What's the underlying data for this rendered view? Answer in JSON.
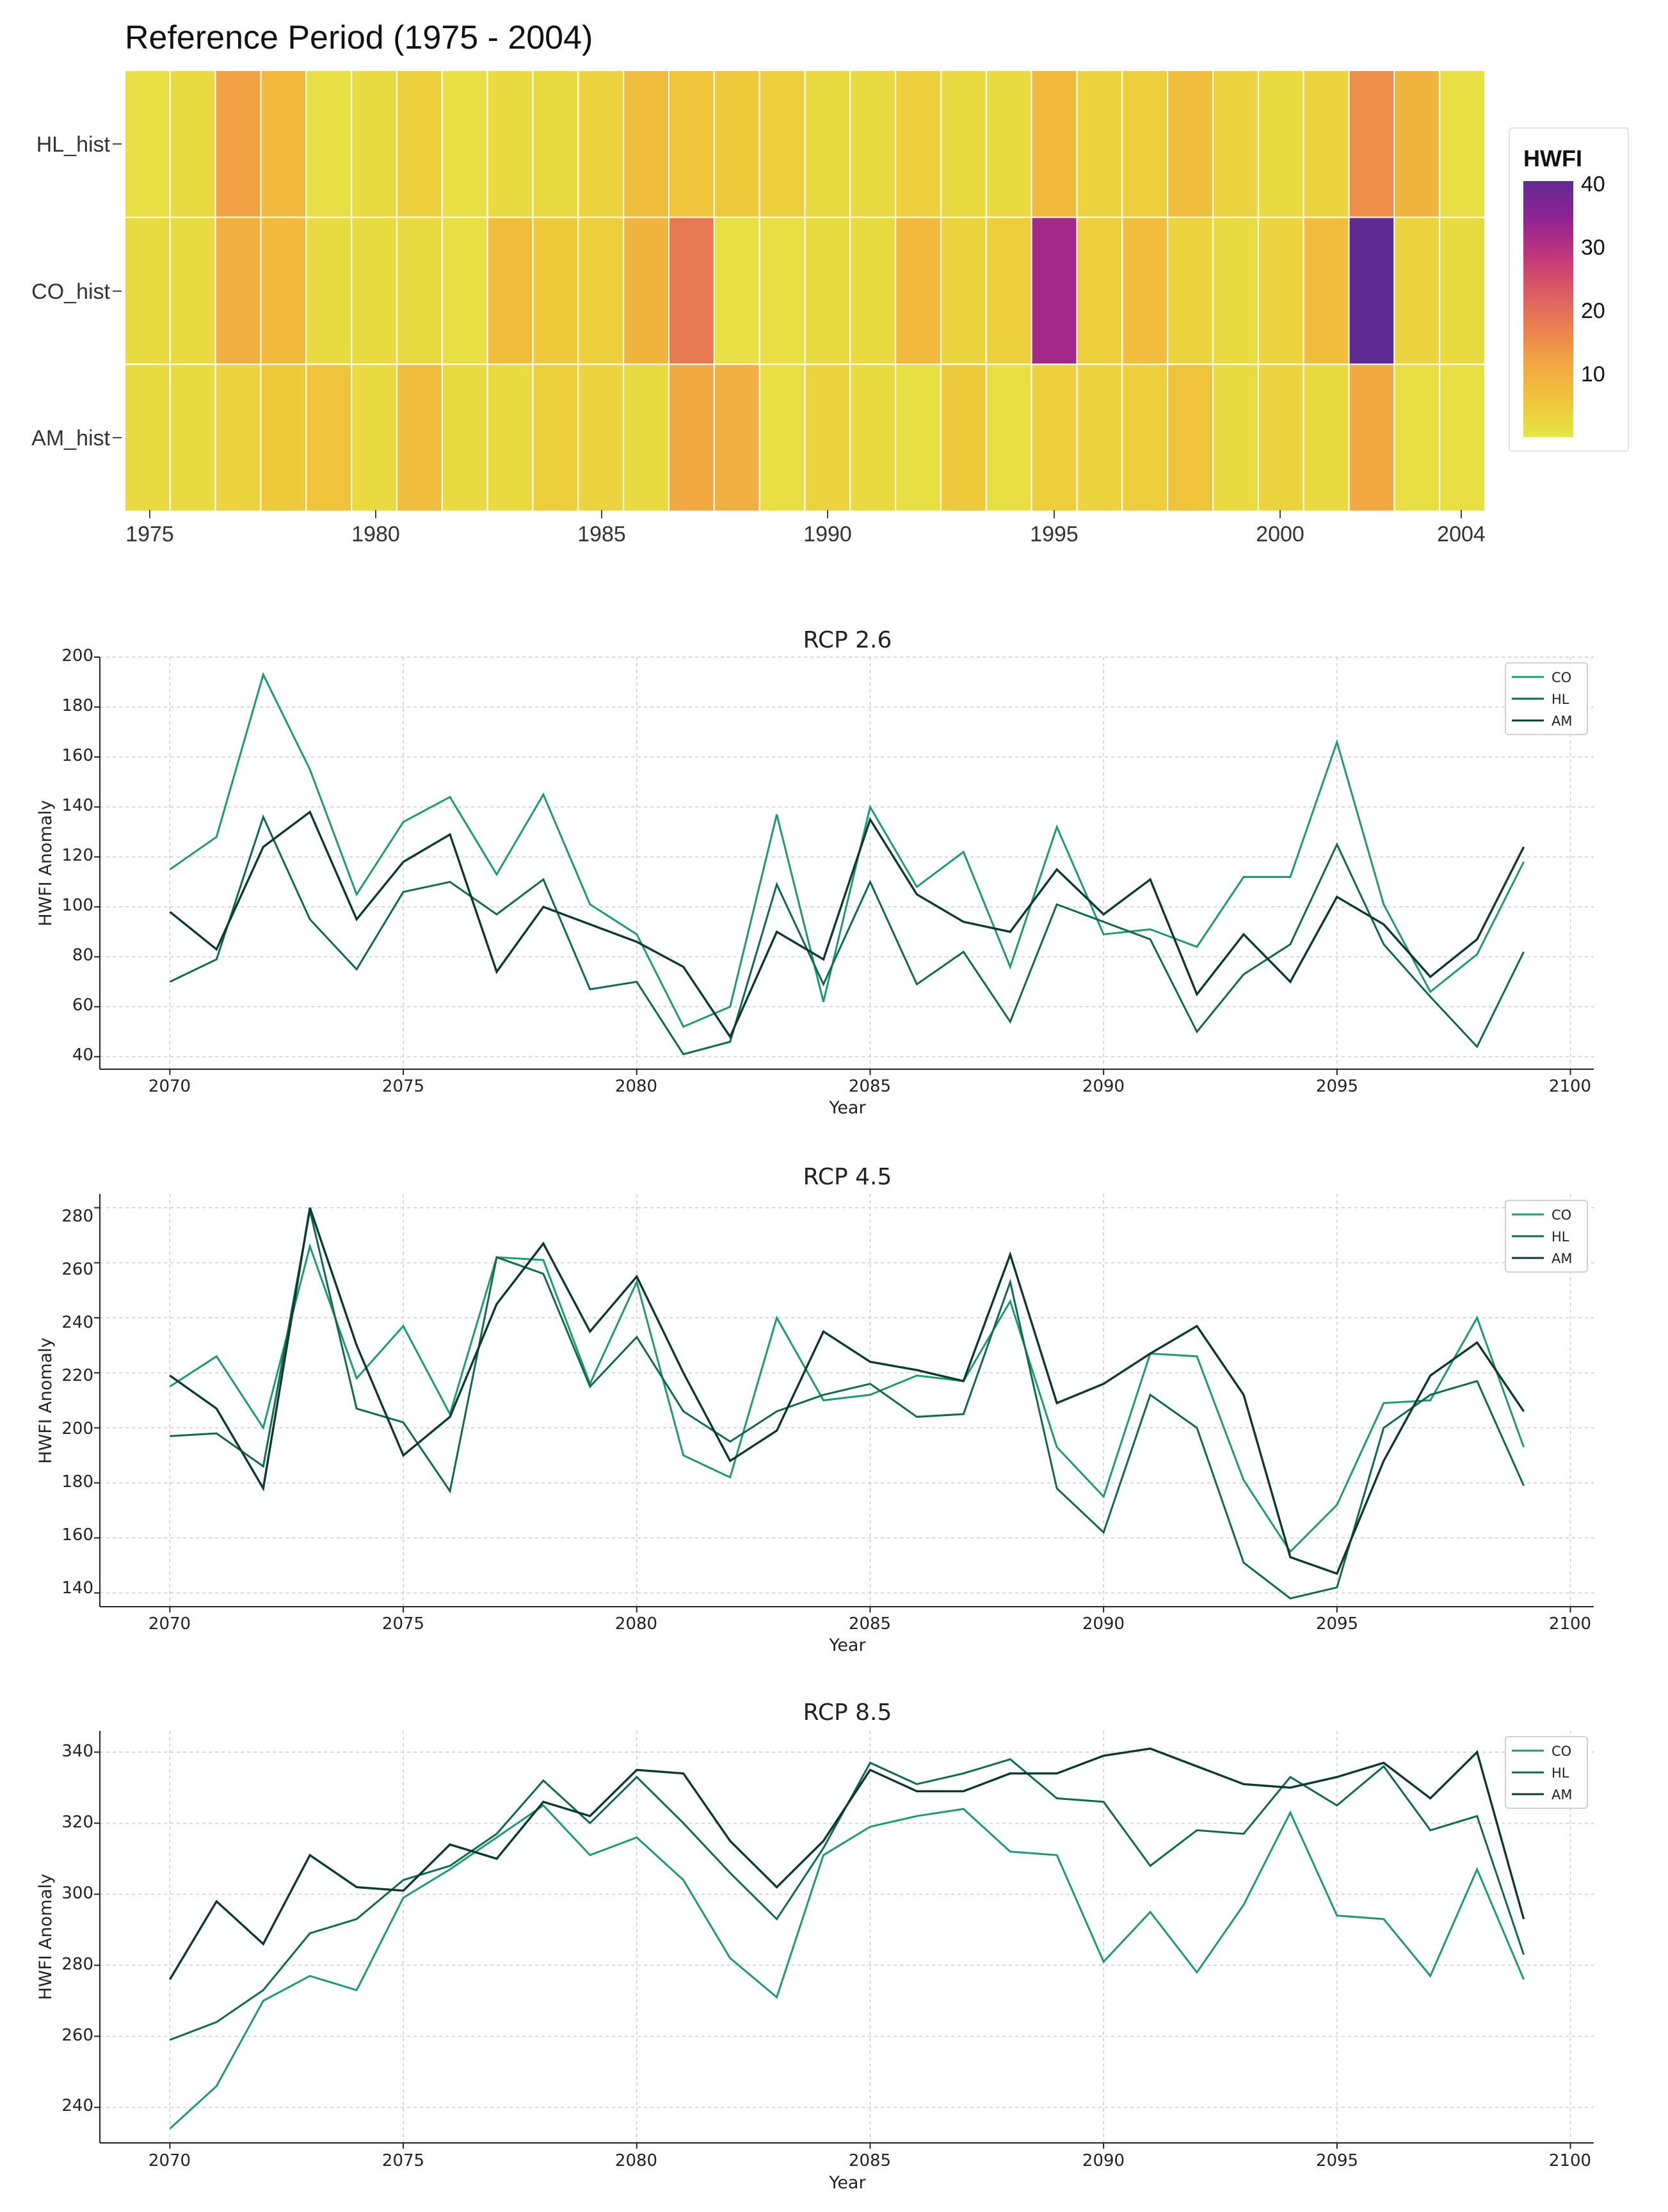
{
  "colors": {
    "co": "#1e9a70",
    "hl": "#106a4c",
    "am": "#0d3a2c",
    "grid": "#cccccc",
    "heat_stops": [
      "#e6e546",
      "#f0c53a",
      "#f2a743",
      "#ea8050",
      "#dc5b64",
      "#c0357a",
      "#8f2392",
      "#5f2a92"
    ]
  },
  "chart_data": [
    {
      "type": "heatmap",
      "title": "Reference Period (1975 - 2004)",
      "rows": [
        "HL_hist",
        "CO_hist",
        "AM_hist"
      ],
      "x_start": 1975,
      "x_end": 2004,
      "x_ticks": [
        "1975",
        "1980",
        "1985",
        "1990",
        "1995",
        "2000",
        "2004"
      ],
      "values": [
        [
          1,
          2,
          12,
          8,
          1,
          2,
          4,
          1,
          2,
          2,
          3,
          7,
          6,
          5,
          4,
          2,
          2,
          4,
          2,
          2,
          8,
          3,
          4,
          7,
          3,
          2,
          3,
          15,
          9,
          1
        ],
        [
          2,
          2,
          10,
          8,
          2,
          2,
          2,
          1,
          7,
          5,
          4,
          9,
          18,
          1,
          1,
          2,
          2,
          8,
          3,
          4,
          32,
          4,
          7,
          3,
          2,
          3,
          7,
          40,
          3,
          2
        ],
        [
          2,
          2,
          3,
          5,
          6,
          2,
          7,
          2,
          2,
          4,
          3,
          2,
          11,
          10,
          1,
          3,
          2,
          1,
          5,
          1,
          4,
          3,
          4,
          6,
          2,
          3,
          2,
          11,
          1,
          1
        ]
      ],
      "colorbar": {
        "title": "HWFI",
        "min": 0,
        "max": 40,
        "ticks": [
          "10",
          "20",
          "30",
          "40"
        ]
      }
    },
    {
      "type": "line",
      "title": "RCP 2.6",
      "xlabel": "Year",
      "ylabel": "HWFI Anomaly",
      "xlim": [
        2068.5,
        2100.5
      ],
      "ylim": [
        35,
        200
      ],
      "x_ticks": [
        "2070",
        "2075",
        "2080",
        "2085",
        "2090",
        "2095",
        "2100"
      ],
      "y_ticks": [
        "40",
        "60",
        "80",
        "100",
        "120",
        "140",
        "160",
        "180",
        "200"
      ],
      "x_start": 2070,
      "series": [
        {
          "name": "CO",
          "values": [
            115,
            128,
            193,
            155,
            105,
            134,
            144,
            113,
            145,
            101,
            89,
            52,
            60,
            137,
            62,
            140,
            108,
            122,
            76,
            132,
            89,
            91,
            84,
            112,
            112,
            166,
            101,
            66,
            81,
            118
          ]
        },
        {
          "name": "HL",
          "values": [
            70,
            79,
            136,
            95,
            75,
            106,
            110,
            97,
            111,
            67,
            70,
            41,
            46,
            109,
            69,
            110,
            69,
            82,
            54,
            101,
            94,
            87,
            50,
            73,
            85,
            125,
            85,
            64,
            44,
            82
          ]
        },
        {
          "name": "AM",
          "values": [
            98,
            83,
            124,
            138,
            95,
            118,
            129,
            74,
            100,
            93,
            86,
            76,
            48,
            90,
            79,
            135,
            105,
            94,
            90,
            115,
            97,
            111,
            65,
            89,
            70,
            104,
            93,
            72,
            87,
            124
          ]
        }
      ]
    },
    {
      "type": "line",
      "title": "RCP 4.5",
      "xlabel": "Year",
      "ylabel": "HWFI Anomaly",
      "xlim": [
        2068.5,
        2100.5
      ],
      "ylim": [
        135,
        285
      ],
      "x_ticks": [
        "2070",
        "2075",
        "2080",
        "2085",
        "2090",
        "2095",
        "2100"
      ],
      "y_ticks": [
        "140",
        "160",
        "180",
        "200",
        "220",
        "240",
        "260",
        "280"
      ],
      "x_start": 2070,
      "series": [
        {
          "name": "CO",
          "values": [
            215,
            226,
            200,
            266,
            218,
            237,
            205,
            262,
            261,
            216,
            253,
            190,
            182,
            240,
            210,
            212,
            219,
            217,
            246,
            193,
            175,
            227,
            226,
            181,
            155,
            172,
            209,
            210,
            240,
            193
          ]
        },
        {
          "name": "HL",
          "values": [
            197,
            198,
            186,
            279,
            207,
            202,
            177,
            262,
            256,
            215,
            233,
            206,
            195,
            206,
            212,
            216,
            204,
            205,
            253,
            178,
            162,
            212,
            200,
            151,
            138,
            142,
            200,
            212,
            217,
            179
          ]
        },
        {
          "name": "AM",
          "values": [
            219,
            207,
            178,
            280,
            230,
            190,
            204,
            245,
            267,
            235,
            255,
            220,
            188,
            199,
            235,
            224,
            221,
            217,
            263,
            209,
            216,
            227,
            237,
            212,
            153,
            147,
            188,
            219,
            231,
            206
          ]
        }
      ]
    },
    {
      "type": "line",
      "title": "RCP 8.5",
      "xlabel": "Year",
      "ylabel": "HWFI Anomaly",
      "xlim": [
        2068.5,
        2100.5
      ],
      "ylim": [
        230,
        346
      ],
      "x_ticks": [
        "2070",
        "2075",
        "2080",
        "2085",
        "2090",
        "2095",
        "2100"
      ],
      "y_ticks": [
        "240",
        "260",
        "280",
        "300",
        "320",
        "340"
      ],
      "x_start": 2070,
      "series": [
        {
          "name": "CO",
          "values": [
            234,
            246,
            270,
            277,
            273,
            299,
            307,
            316,
            325,
            311,
            316,
            304,
            282,
            271,
            311,
            319,
            322,
            324,
            312,
            311,
            281,
            295,
            278,
            297,
            323,
            294,
            293,
            277,
            307,
            276
          ]
        },
        {
          "name": "HL",
          "values": [
            259,
            264,
            273,
            289,
            293,
            304,
            308,
            317,
            332,
            320,
            333,
            320,
            306,
            293,
            313,
            337,
            331,
            334,
            338,
            327,
            326,
            308,
            318,
            317,
            333,
            325,
            336,
            318,
            322,
            283
          ]
        },
        {
          "name": "AM",
          "values": [
            276,
            298,
            286,
            311,
            302,
            301,
            314,
            310,
            326,
            322,
            335,
            334,
            315,
            302,
            315,
            335,
            329,
            329,
            334,
            334,
            339,
            341,
            336,
            331,
            330,
            333,
            337,
            327,
            340,
            293
          ]
        }
      ]
    }
  ]
}
